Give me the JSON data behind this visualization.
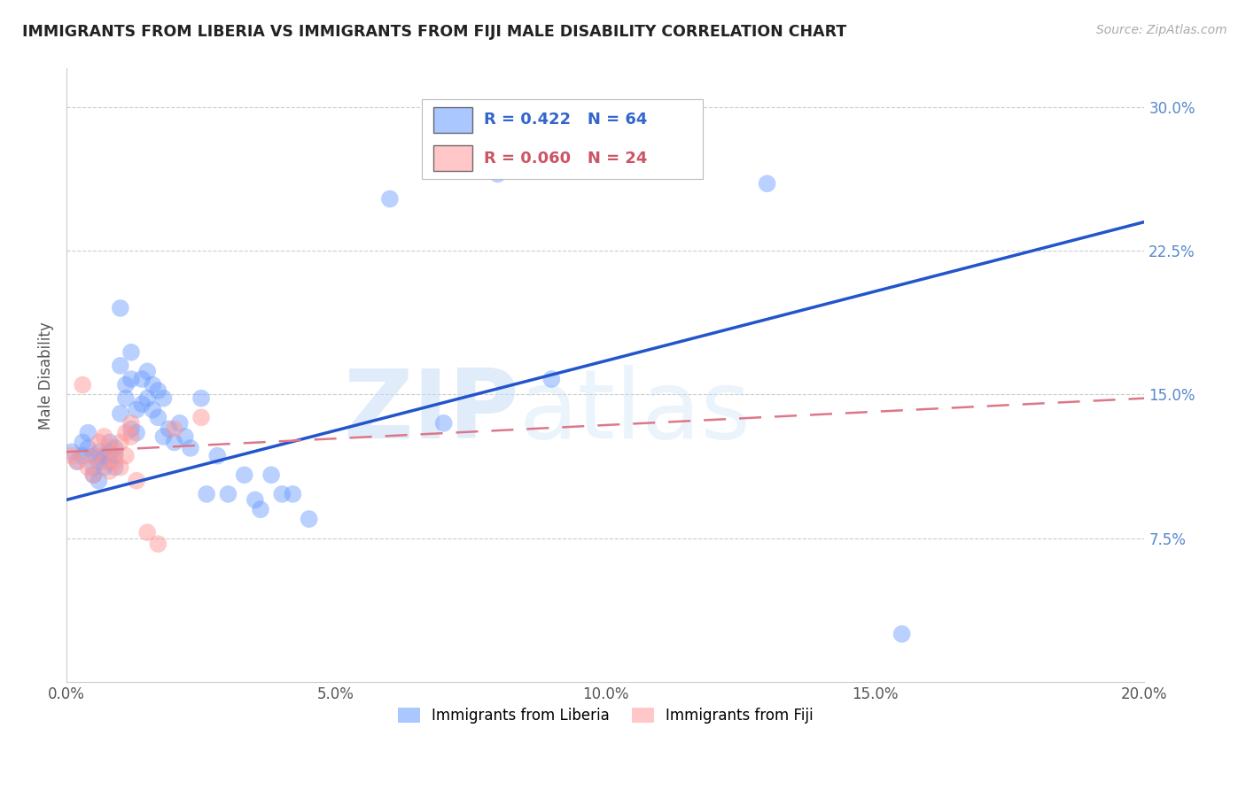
{
  "title": "IMMIGRANTS FROM LIBERIA VS IMMIGRANTS FROM FIJI MALE DISABILITY CORRELATION CHART",
  "source": "Source: ZipAtlas.com",
  "ylabel": "Male Disability",
  "legend_label_blue": "Immigrants from Liberia",
  "legend_label_pink": "Immigrants from Fiji",
  "R_blue": 0.422,
  "N_blue": 64,
  "R_pink": 0.06,
  "N_pink": 24,
  "xlim": [
    0.0,
    0.2
  ],
  "ylim": [
    0.0,
    0.32
  ],
  "xticks": [
    0.0,
    0.05,
    0.1,
    0.15,
    0.2
  ],
  "yticks_right": [
    0.075,
    0.15,
    0.225,
    0.3
  ],
  "ytick_labels_right": [
    "7.5%",
    "15.0%",
    "22.5%",
    "30.0%"
  ],
  "xtick_labels": [
    "0.0%",
    "5.0%",
    "10.0%",
    "15.0%",
    "20.0%"
  ],
  "color_blue": "#6699FF",
  "color_pink": "#FF9999",
  "color_blue_line": "#2255CC",
  "color_pink_line": "#DD7788",
  "watermark_zip": "ZIP",
  "watermark_atlas": "atlas",
  "blue_line_x": [
    0.0,
    0.2
  ],
  "blue_line_y": [
    0.095,
    0.24
  ],
  "pink_line_x": [
    0.0,
    0.2
  ],
  "pink_line_y": [
    0.12,
    0.148
  ],
  "blue_x": [
    0.001,
    0.002,
    0.003,
    0.003,
    0.004,
    0.004,
    0.005,
    0.005,
    0.005,
    0.006,
    0.006,
    0.006,
    0.007,
    0.007,
    0.008,
    0.008,
    0.008,
    0.009,
    0.009,
    0.009,
    0.01,
    0.01,
    0.01,
    0.011,
    0.011,
    0.012,
    0.012,
    0.012,
    0.013,
    0.013,
    0.014,
    0.014,
    0.015,
    0.015,
    0.016,
    0.016,
    0.017,
    0.017,
    0.018,
    0.018,
    0.019,
    0.02,
    0.021,
    0.022,
    0.023,
    0.025,
    0.026,
    0.028,
    0.03,
    0.033,
    0.035,
    0.036,
    0.038,
    0.04,
    0.042,
    0.045,
    0.06,
    0.07,
    0.075,
    0.08,
    0.09,
    0.1,
    0.13,
    0.155
  ],
  "blue_y": [
    0.12,
    0.115,
    0.125,
    0.118,
    0.122,
    0.13,
    0.112,
    0.118,
    0.108,
    0.115,
    0.12,
    0.105,
    0.118,
    0.112,
    0.12,
    0.115,
    0.125,
    0.118,
    0.122,
    0.112,
    0.195,
    0.165,
    0.14,
    0.155,
    0.148,
    0.158,
    0.172,
    0.132,
    0.142,
    0.13,
    0.145,
    0.158,
    0.148,
    0.162,
    0.155,
    0.142,
    0.152,
    0.138,
    0.148,
    0.128,
    0.132,
    0.125,
    0.135,
    0.128,
    0.122,
    0.148,
    0.098,
    0.118,
    0.098,
    0.108,
    0.095,
    0.09,
    0.108,
    0.098,
    0.098,
    0.085,
    0.252,
    0.135,
    0.27,
    0.265,
    0.158,
    0.27,
    0.26,
    0.025
  ],
  "pink_x": [
    0.001,
    0.002,
    0.003,
    0.004,
    0.005,
    0.005,
    0.006,
    0.007,
    0.007,
    0.008,
    0.008,
    0.009,
    0.009,
    0.01,
    0.01,
    0.011,
    0.011,
    0.012,
    0.012,
    0.013,
    0.015,
    0.017,
    0.02,
    0.025
  ],
  "pink_y": [
    0.118,
    0.115,
    0.155,
    0.112,
    0.108,
    0.118,
    0.125,
    0.128,
    0.115,
    0.122,
    0.11,
    0.115,
    0.12,
    0.125,
    0.112,
    0.13,
    0.118,
    0.135,
    0.128,
    0.105,
    0.078,
    0.072,
    0.132,
    0.138
  ]
}
